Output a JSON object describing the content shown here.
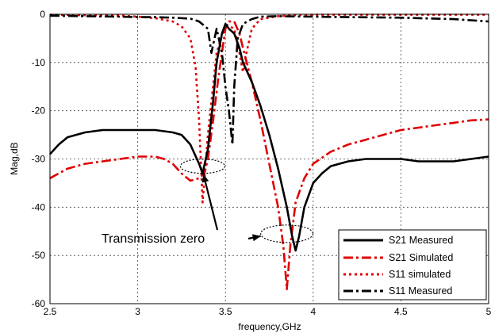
{
  "chart_data": {
    "type": "line",
    "xlabel": "frequency,GHz",
    "ylabel": "Mag,dB",
    "xlim": [
      2.5,
      5
    ],
    "ylim": [
      -60,
      0
    ],
    "xticks": [
      2.5,
      3,
      3.5,
      4,
      4.5,
      5
    ],
    "xtick_labels": [
      "2.5",
      "3",
      "3.5",
      "4",
      "4.5",
      "5"
    ],
    "yticks": [
      0,
      -10,
      -20,
      -30,
      -40,
      -50,
      -60
    ],
    "ytick_labels": [
      "0",
      "-10",
      "-20",
      "-30",
      "-40",
      "-50",
      "-60"
    ],
    "grid": true,
    "legend_position": "bottom-right",
    "series": [
      {
        "name": "S21 Measured",
        "color": "#000000",
        "dash": "solid",
        "x": [
          2.5,
          2.55,
          2.6,
          2.7,
          2.8,
          2.9,
          3.0,
          3.1,
          3.2,
          3.25,
          3.3,
          3.35,
          3.37,
          3.4,
          3.43,
          3.45,
          3.48,
          3.5,
          3.52,
          3.55,
          3.58,
          3.6,
          3.65,
          3.7,
          3.75,
          3.8,
          3.85,
          3.88,
          3.9,
          3.92,
          3.95,
          4.0,
          4.05,
          4.1,
          4.2,
          4.3,
          4.4,
          4.5,
          4.6,
          4.7,
          4.8,
          4.9,
          5.0
        ],
        "y": [
          -29,
          -27,
          -25.5,
          -24.5,
          -24,
          -24,
          -24,
          -24,
          -24.5,
          -25,
          -27,
          -31,
          -33,
          -28,
          -18,
          -10,
          -4,
          -2,
          -3,
          -4,
          -7,
          -10,
          -14,
          -19,
          -25,
          -32,
          -40,
          -46,
          -49,
          -46,
          -40,
          -35,
          -33,
          -31.5,
          -30.5,
          -30,
          -30,
          -30,
          -30.5,
          -30.5,
          -30.5,
          -30,
          -29.5
        ]
      },
      {
        "name": "S21 Simulated",
        "color": "#e00000",
        "dash": "dashdot",
        "x": [
          2.5,
          2.6,
          2.7,
          2.8,
          2.9,
          3.0,
          3.1,
          3.15,
          3.2,
          3.25,
          3.3,
          3.35,
          3.38,
          3.4,
          3.43,
          3.46,
          3.5,
          3.52,
          3.55,
          3.58,
          3.6,
          3.65,
          3.7,
          3.75,
          3.8,
          3.83,
          3.85,
          3.87,
          3.9,
          3.95,
          4.0,
          4.1,
          4.2,
          4.3,
          4.4,
          4.5,
          4.6,
          4.7,
          4.8,
          4.9,
          5.0
        ],
        "y": [
          -34,
          -32,
          -31,
          -30.5,
          -30,
          -29.5,
          -29.5,
          -30,
          -31,
          -33,
          -34.5,
          -34,
          -33,
          -30,
          -22,
          -13,
          -3,
          -1.5,
          -1.5,
          -4,
          -7,
          -14,
          -22,
          -31,
          -40,
          -48,
          -57,
          -48,
          -39,
          -34,
          -31,
          -28.5,
          -27,
          -26,
          -25,
          -24,
          -23.5,
          -23,
          -22.5,
          -22,
          -21.8
        ]
      },
      {
        "name": "S11 simulated",
        "color": "#e00000",
        "dash": "dotted",
        "x": [
          2.5,
          2.7,
          2.9,
          3.0,
          3.1,
          3.2,
          3.25,
          3.3,
          3.33,
          3.35,
          3.37,
          3.4,
          3.45,
          3.5,
          3.55,
          3.58,
          3.6,
          3.62,
          3.65,
          3.7,
          3.8,
          3.9,
          4.0,
          4.2,
          4.5,
          5.0
        ],
        "y": [
          -0.1,
          -0.2,
          -0.3,
          -0.5,
          -0.8,
          -1.5,
          -2.5,
          -5,
          -11,
          -22,
          -39,
          -25,
          -8,
          -2,
          -3,
          -8,
          -12,
          -8,
          -3,
          -1,
          -0.4,
          -0.2,
          -0.1,
          -0.1,
          -0.1,
          -0.1
        ]
      },
      {
        "name": "S11 Measured",
        "color": "#000000",
        "dash": "dashdot",
        "x": [
          2.5,
          2.7,
          2.9,
          3.0,
          3.1,
          3.2,
          3.3,
          3.35,
          3.4,
          3.42,
          3.45,
          3.48,
          3.5,
          3.52,
          3.54,
          3.55,
          3.57,
          3.6,
          3.65,
          3.7,
          3.8,
          4.0,
          4.2,
          4.5,
          4.8,
          5.0
        ],
        "y": [
          -0.3,
          -0.4,
          -0.5,
          -0.6,
          -0.6,
          -0.7,
          -0.9,
          -1.5,
          -3,
          -8,
          -3,
          -8,
          -15,
          -20,
          -27,
          -15,
          -5,
          -2,
          -1,
          -0.5,
          -0.4,
          -0.5,
          -0.6,
          -0.7,
          -1,
          -1.5
        ]
      }
    ],
    "annotations": [
      {
        "text": "Transmission zero"
      }
    ]
  }
}
